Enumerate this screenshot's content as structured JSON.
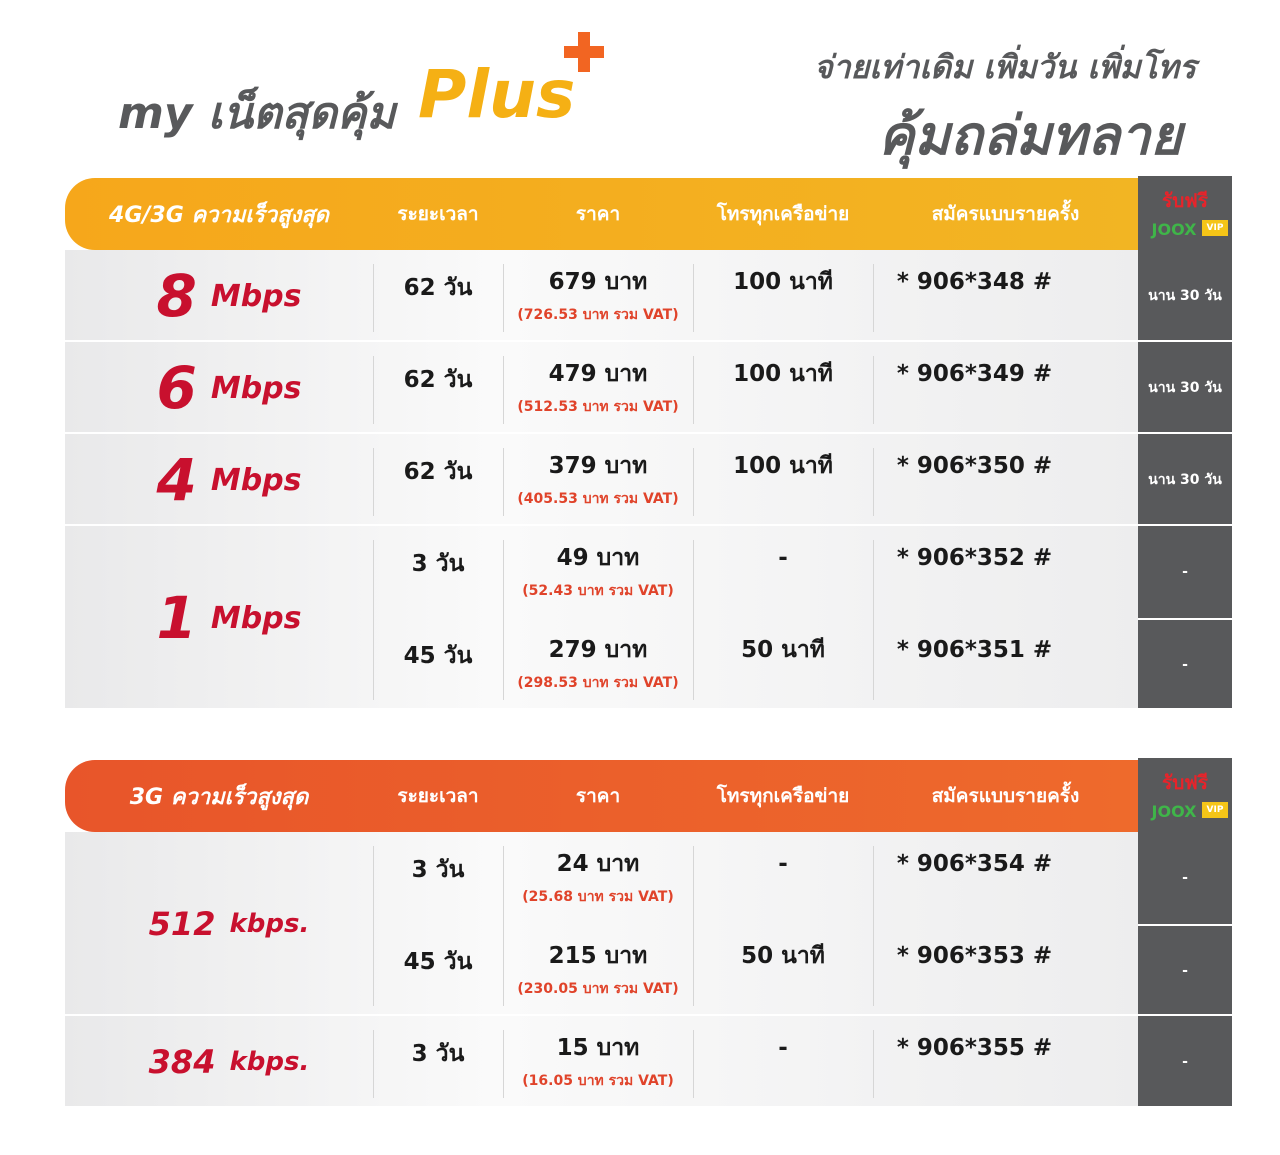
{
  "header": {
    "brand": "my เน็ตสุดคุ้ม",
    "plus": "Plus",
    "tagline": "จ่ายเท่าเดิม เพิ่มวัน เพิ่มโทร",
    "slogan": "คุ้มถล่มทลาย"
  },
  "tables": [
    {
      "title": "4G/3G ความเร็วสูงสุด",
      "columns": [
        "ระยะเวลา",
        "ราคา",
        "โทรทุกเครือข่าย",
        "สมัครแบบรายครั้ง"
      ],
      "joox": {
        "free": "รับฟรี",
        "brand": "JOOX",
        "tier": "VIP"
      },
      "groups": [
        {
          "speed": "8",
          "unit": "Mbps",
          "rows": [
            {
              "duration": "62 วัน",
              "price": "679 บาท",
              "price_vat": "(726.53 บาท รวม VAT)",
              "calls": "100 นาที",
              "code": "* 906*348 #",
              "joox": "นาน 30 วัน"
            }
          ]
        },
        {
          "speed": "6",
          "unit": "Mbps",
          "rows": [
            {
              "duration": "62 วัน",
              "price": "479 บาท",
              "price_vat": "(512.53 บาท รวม VAT)",
              "calls": "100 นาที",
              "code": "* 906*349 #",
              "joox": "นาน 30 วัน"
            }
          ]
        },
        {
          "speed": "4",
          "unit": "Mbps",
          "rows": [
            {
              "duration": "62 วัน",
              "price": "379 บาท",
              "price_vat": "(405.53 บาท รวม VAT)",
              "calls": "100 นาที",
              "code": "* 906*350 #",
              "joox": "นาน 30 วัน"
            }
          ]
        },
        {
          "speed": "1",
          "unit": "Mbps",
          "rows": [
            {
              "duration": "3 วัน",
              "price": "49 บาท",
              "price_vat": "(52.43 บาท รวม VAT)",
              "calls": "-",
              "code": "* 906*352 #",
              "joox": "-"
            },
            {
              "duration": "45 วัน",
              "price": "279 บาท",
              "price_vat": "(298.53 บาท รวม VAT)",
              "calls": "50 นาที",
              "code": "* 906*351 #",
              "joox": "-"
            }
          ]
        }
      ]
    },
    {
      "title": "3G ความเร็วสูงสุด",
      "columns": [
        "ระยะเวลา",
        "ราคา",
        "โทรทุกเครือข่าย",
        "สมัครแบบรายครั้ง"
      ],
      "joox": {
        "free": "รับฟรี",
        "brand": "JOOX",
        "tier": "VIP"
      },
      "groups": [
        {
          "speed": "512",
          "unit": "kbps.",
          "rows": [
            {
              "duration": "3 วัน",
              "price": "24 บาท",
              "price_vat": "(25.68 บาท รวม VAT)",
              "calls": "-",
              "code": "* 906*354 #",
              "joox": "-"
            },
            {
              "duration": "45 วัน",
              "price": "215 บาท",
              "price_vat": "(230.05 บาท รวม VAT)",
              "calls": "50 นาที",
              "code": "* 906*353 #",
              "joox": "-"
            }
          ]
        },
        {
          "speed": "384",
          "unit": "kbps.",
          "rows": [
            {
              "duration": "3 วัน",
              "price": "15 บาท",
              "price_vat": "(16.05 บาท รวม VAT)",
              "calls": "-",
              "code": "* 906*355 #",
              "joox": "-"
            }
          ]
        }
      ]
    }
  ]
}
